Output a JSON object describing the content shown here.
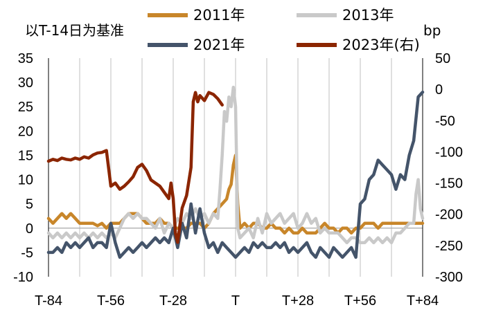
{
  "chart_data": {
    "type": "line",
    "title": "",
    "ylabel_left": "以T-14日为基准",
    "ylabel_right": "bp",
    "xlabel": "",
    "x_range": [
      -84,
      84
    ],
    "x_tick_labels": [
      "T-84",
      "T-56",
      "T-28",
      "T",
      "T+28",
      "T+56",
      "T+84"
    ],
    "x_tick_values": [
      -84,
      -56,
      -28,
      0,
      28,
      56,
      84
    ],
    "x_grid_values": [
      -70,
      -56,
      -42,
      -28,
      -14,
      0,
      14,
      28,
      42,
      56,
      70,
      84
    ],
    "ylim_left": [
      -10,
      35
    ],
    "yticks_left": [
      "35",
      "30",
      "25",
      "20",
      "15",
      "10",
      "5",
      "0",
      "-5",
      "-10"
    ],
    "ylim_right": [
      -300,
      50
    ],
    "yticks_right": [
      "50",
      "0",
      "-50",
      "-100",
      "-150",
      "-200",
      "-250",
      "-300"
    ],
    "grid": "vertical",
    "legend_position": "top",
    "series": [
      {
        "name": "2011年",
        "color": "#c8862a",
        "axis": "left",
        "x": [
          -84,
          -82,
          -80,
          -78,
          -76,
          -74,
          -72,
          -70,
          -68,
          -66,
          -64,
          -62,
          -60,
          -58,
          -56,
          -54,
          -52,
          -50,
          -48,
          -46,
          -44,
          -42,
          -40,
          -38,
          -36,
          -34,
          -32,
          -30,
          -28,
          -26,
          -24,
          -22,
          -20,
          -18,
          -16,
          -14,
          -12,
          -10,
          -8,
          -6,
          -4,
          -3,
          -2,
          -1,
          0,
          1,
          2,
          4,
          6,
          8,
          10,
          12,
          14,
          16,
          18,
          20,
          22,
          24,
          26,
          28,
          30,
          32,
          34,
          36,
          38,
          40,
          42,
          44,
          46,
          48,
          50,
          52,
          54,
          56,
          58,
          60,
          62,
          64,
          66,
          68,
          70,
          72,
          74,
          76,
          78,
          80,
          82,
          84
        ],
        "values": [
          2,
          1,
          2,
          3,
          2,
          3,
          2,
          1,
          1,
          1,
          1,
          0.5,
          1,
          0,
          1,
          1,
          1,
          2,
          3,
          3,
          3,
          2,
          1,
          1,
          1,
          2,
          1,
          1,
          0,
          0,
          0,
          0,
          1,
          1,
          1,
          0,
          1,
          3,
          4,
          5,
          6,
          8,
          9,
          13,
          15,
          5,
          0,
          1,
          0,
          1,
          1,
          0,
          0,
          1,
          0,
          0,
          -1,
          0,
          -1,
          -1,
          0,
          -1,
          -1,
          -1,
          0,
          1,
          0,
          0,
          -1,
          0,
          0,
          -1,
          0,
          0,
          1,
          1,
          1,
          0,
          1,
          1,
          1,
          1,
          1,
          1,
          1,
          1,
          1,
          1
        ]
      },
      {
        "name": "2013年",
        "color": "#c9c9c9",
        "axis": "left",
        "x": [
          -84,
          -82,
          -80,
          -78,
          -76,
          -74,
          -72,
          -70,
          -68,
          -66,
          -64,
          -62,
          -60,
          -58,
          -56,
          -54,
          -52,
          -50,
          -48,
          -46,
          -44,
          -42,
          -40,
          -38,
          -36,
          -34,
          -32,
          -30,
          -28,
          -26,
          -24,
          -22,
          -20,
          -18,
          -16,
          -14,
          -12,
          -10,
          -8,
          -7,
          -6,
          -5,
          -4,
          -3,
          -2,
          -1,
          0,
          1,
          2,
          4,
          6,
          8,
          10,
          12,
          14,
          16,
          18,
          20,
          22,
          24,
          26,
          28,
          30,
          32,
          34,
          36,
          38,
          40,
          42,
          44,
          46,
          48,
          50,
          52,
          54,
          56,
          58,
          60,
          62,
          64,
          66,
          68,
          70,
          72,
          74,
          76,
          78,
          80,
          81,
          82,
          83,
          84
        ],
        "values": [
          -1,
          -2,
          -1,
          -2,
          -1,
          -2,
          -1,
          -2,
          -1,
          -2,
          -1,
          -2,
          -1,
          -2,
          -1,
          -2,
          0,
          2,
          3,
          2,
          3,
          2,
          2,
          1,
          0,
          2,
          -1,
          1,
          0,
          2,
          1,
          3,
          2,
          4,
          2,
          3,
          1,
          3,
          2,
          8,
          15,
          24,
          22,
          27,
          25,
          29,
          25,
          0,
          -2,
          -1,
          0,
          -2,
          2,
          -1,
          3,
          1,
          2,
          3,
          1,
          2,
          3,
          0,
          1,
          3,
          1,
          2,
          -1,
          0,
          -1,
          -1,
          -1,
          -2,
          -3,
          -2,
          -2,
          -3,
          -3,
          -2,
          -3,
          -2,
          -3,
          -2,
          -3,
          -1,
          -1,
          0,
          1,
          1,
          7,
          10,
          4,
          2
        ]
      },
      {
        "name": "2021年",
        "color": "#44546a",
        "axis": "left",
        "x": [
          -84,
          -82,
          -80,
          -78,
          -76,
          -74,
          -72,
          -70,
          -68,
          -66,
          -64,
          -62,
          -60,
          -58,
          -56,
          -54,
          -52,
          -50,
          -48,
          -46,
          -44,
          -42,
          -40,
          -38,
          -36,
          -34,
          -32,
          -30,
          -28,
          -26,
          -24,
          -22,
          -20,
          -18,
          -16,
          -14,
          -12,
          -10,
          -8,
          -6,
          -4,
          -2,
          0,
          2,
          4,
          6,
          8,
          10,
          12,
          14,
          16,
          18,
          20,
          22,
          24,
          26,
          28,
          30,
          32,
          34,
          36,
          38,
          40,
          42,
          44,
          46,
          48,
          50,
          52,
          54,
          56,
          58,
          60,
          62,
          64,
          66,
          68,
          70,
          72,
          74,
          76,
          78,
          80,
          82,
          84
        ],
        "values": [
          -5,
          -5,
          -4,
          -5,
          -3,
          -4,
          -3,
          -4,
          -3,
          -2,
          -4,
          -3,
          -3,
          -4,
          1,
          -3,
          -6,
          -5,
          -4,
          -5,
          -4,
          -3,
          -4,
          -3,
          -2,
          -3,
          -2,
          -3,
          0,
          -4,
          1,
          -2,
          5,
          -1,
          4,
          -1,
          -4,
          -3,
          -5,
          -3,
          -4,
          -5,
          -6,
          -5,
          -4,
          -5,
          -3,
          -4,
          -3,
          -4,
          -4,
          -3,
          -4,
          -3,
          -5,
          -4,
          -5,
          -4,
          -3,
          -5,
          -6,
          -4,
          -5,
          -6,
          -4,
          -5,
          -6,
          -5,
          -4,
          -6,
          5,
          6,
          10,
          11,
          14,
          13,
          12,
          11,
          8,
          11,
          10,
          15,
          18,
          27,
          28
        ]
      },
      {
        "name": "2023年(右)",
        "color": "#8b2500",
        "axis": "right",
        "x": [
          -84,
          -82,
          -80,
          -78,
          -76,
          -74,
          -72,
          -70,
          -68,
          -66,
          -64,
          -62,
          -60,
          -58,
          -56,
          -54,
          -52,
          -50,
          -48,
          -46,
          -44,
          -42,
          -40,
          -38,
          -36,
          -34,
          -32,
          -30,
          -29,
          -28,
          -27,
          -26,
          -24,
          -22,
          -20,
          -19,
          -18,
          -17,
          -16,
          -14,
          -12,
          -10,
          -8,
          -6
        ],
        "values": [
          -115,
          -112,
          -114,
          -110,
          -112,
          -113,
          -110,
          -112,
          -108,
          -110,
          -105,
          -102,
          -101,
          -98,
          -155,
          -150,
          -160,
          -155,
          -148,
          -140,
          -125,
          -120,
          -130,
          -145,
          -150,
          -155,
          -165,
          -175,
          -150,
          -175,
          -230,
          -245,
          -190,
          -170,
          -125,
          -20,
          -5,
          -20,
          -10,
          -18,
          -5,
          -8,
          -15,
          -25
        ]
      }
    ]
  }
}
